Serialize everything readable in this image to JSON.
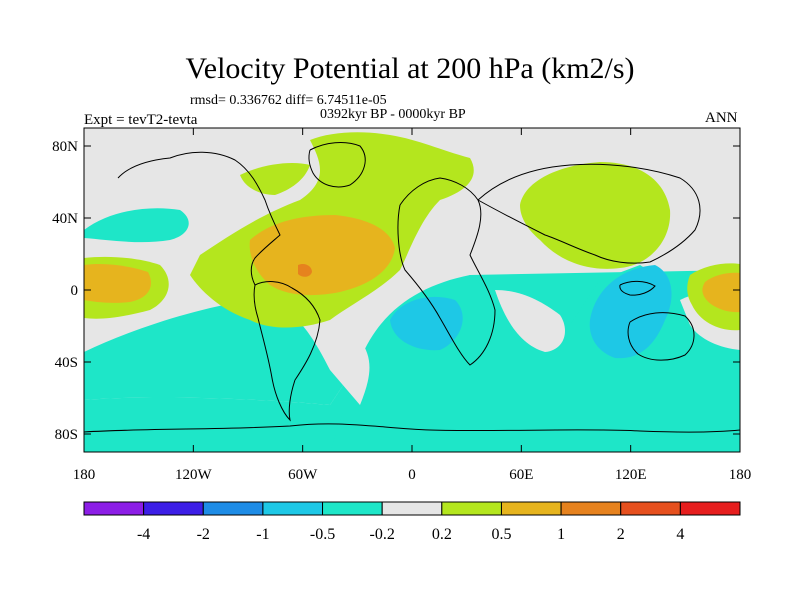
{
  "header": {
    "title": "Velocity Potential at 200 hPa (km2/s)",
    "stats": "rmsd= 0.336762 diff= 6.74511e-05",
    "period": "0392kyr BP - 0000kyr BP",
    "experiment": "Expt = tevT2-tevta",
    "season": "ANN"
  },
  "map": {
    "lat_ticks": [
      {
        "lat": 80,
        "label": "80N"
      },
      {
        "lat": 40,
        "label": "40N"
      },
      {
        "lat": 0,
        "label": "0"
      },
      {
        "lat": -40,
        "label": "40S"
      },
      {
        "lat": -80,
        "label": "80S"
      }
    ],
    "lon_ticks": [
      {
        "lon": -180,
        "label": "180"
      },
      {
        "lon": -120,
        "label": "120W"
      },
      {
        "lon": -60,
        "label": "60W"
      },
      {
        "lon": 0,
        "label": "0"
      },
      {
        "lon": 60,
        "label": "60E"
      },
      {
        "lon": 120,
        "label": "120E"
      },
      {
        "lon": 180,
        "label": "180"
      }
    ],
    "colors": {
      "lt_neg_0_5": "#1ee6c8",
      "lt_neg_1": "#1ec8e6",
      "lt_neg_2": "#1e8ce6",
      "neutral": "#e6e6e6",
      "gt_0_2": "#b4e61e",
      "gt_0_5": "#e6b41e",
      "gt_1": "#e6821e",
      "gt_2": "#e6501e",
      "coast": "#000000"
    }
  },
  "colorbar": {
    "colors": [
      "#8c1ee6",
      "#3c1ee6",
      "#1e8ce6",
      "#1ec8e6",
      "#1ee6c8",
      "#e6e6e6",
      "#b4e61e",
      "#e6b41e",
      "#e6821e",
      "#e6501e",
      "#e61e1e"
    ],
    "labels": [
      "-4",
      "-2",
      "-1",
      "-0.5",
      "-0.2",
      "0.2",
      "0.5",
      "1",
      "2",
      "4"
    ]
  }
}
